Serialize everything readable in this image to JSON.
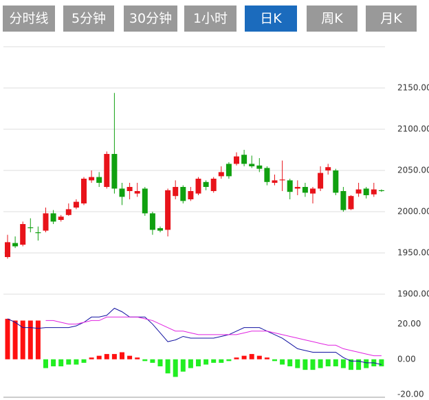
{
  "tabs": {
    "items": [
      "分时线",
      "5分钟",
      "30分钟",
      "1小时",
      "日K",
      "周K",
      "月K"
    ],
    "active": 4
  },
  "chart_data": [
    {
      "type": "candlestick",
      "up_color": "#e8131a",
      "down_color": "#10a010",
      "grid": true,
      "ylim": [
        1900,
        2200
      ],
      "yticks": [
        {
          "value": 1900,
          "label": "1900.00"
        },
        {
          "value": 1950,
          "label": "1950.00"
        },
        {
          "value": 2000,
          "label": "2000.00"
        },
        {
          "value": 2050,
          "label": "2050.00"
        },
        {
          "value": 2100,
          "label": "2100.00"
        },
        {
          "value": 2150,
          "label": "2150.00"
        }
      ],
      "open": [
        1945,
        1962,
        1960,
        1981,
        1975,
        1977,
        1998,
        1990,
        1996,
        2005,
        2010,
        2038,
        2042,
        2030,
        2070,
        2028,
        2025,
        2022,
        2028,
        1998,
        1980,
        1978,
        2019,
        2030,
        2015,
        2022,
        2036,
        2025,
        2043,
        2058,
        2058,
        2069,
        2058,
        2056,
        2053,
        2035,
        2038,
        2038,
        2028,
        2030,
        2022,
        2028,
        2050,
        2050,
        2025,
        2003,
        2022,
        2028,
        2021,
        2026
      ],
      "high": [
        1972,
        1970,
        1988,
        1992,
        1982,
        2005,
        2002,
        1996,
        2010,
        2015,
        2042,
        2050,
        2048,
        2073,
        2144,
        2035,
        2035,
        2035,
        2030,
        2000,
        1982,
        2028,
        2038,
        2032,
        2030,
        2042,
        2038,
        2042,
        2055,
        2060,
        2072,
        2075,
        2068,
        2065,
        2055,
        2045,
        2062,
        2040,
        2038,
        2035,
        2030,
        2055,
        2058,
        2052,
        2030,
        2020,
        2035,
        2030,
        2035,
        2027
      ],
      "low": [
        1943,
        1956,
        1958,
        1975,
        1965,
        1975,
        1985,
        1988,
        1995,
        2003,
        2008,
        2035,
        2030,
        2028,
        2022,
        2008,
        2015,
        2018,
        1995,
        1972,
        1975,
        1970,
        2015,
        2010,
        2013,
        2020,
        2026,
        2023,
        2040,
        2040,
        2056,
        2055,
        2053,
        2048,
        2032,
        2032,
        2025,
        2015,
        2020,
        2018,
        2010,
        2025,
        2045,
        2020,
        2000,
        2002,
        2018,
        2016,
        2018,
        2024
      ],
      "close": [
        1963,
        1958,
        1985,
        1980,
        1974,
        1998,
        1988,
        1994,
        2003,
        2012,
        2040,
        2042,
        2035,
        2070,
        2028,
        2018,
        2030,
        2025,
        1998,
        1978,
        1977,
        2026,
        2030,
        2013,
        2025,
        2040,
        2030,
        2040,
        2048,
        2043,
        2067,
        2058,
        2055,
        2052,
        2036,
        2038,
        2039,
        2024,
        2030,
        2023,
        2028,
        2047,
        2054,
        2023,
        2002,
        2019,
        2027,
        2020,
        2027,
        2025
      ]
    },
    {
      "type": "combo",
      "grid": false,
      "ylim": [
        -20,
        37
      ],
      "yticks": [
        {
          "value": -20,
          "label": "-20.00"
        },
        {
          "value": 0,
          "label": "0.00"
        },
        {
          "value": 20,
          "label": "20.00"
        }
      ],
      "series": [
        {
          "type": "bar",
          "up_color": "#ff1010",
          "down_color": "#22ee22",
          "values": [
            23,
            22,
            22,
            22,
            22,
            -5,
            -4,
            -4,
            -3,
            -3,
            -2,
            1,
            2,
            3,
            3,
            4,
            2,
            1,
            -1,
            -2,
            -4,
            -8,
            -10,
            -7,
            -5,
            -4,
            -3,
            -2,
            -2,
            -1,
            1,
            2,
            3,
            2,
            1,
            -1,
            -3,
            -4,
            -5,
            -6,
            -6,
            -5,
            -4,
            -4,
            -5,
            -6,
            -6,
            -5,
            -4,
            -4
          ]
        },
        {
          "type": "line",
          "color": "#1010a0",
          "values": [
            23,
            21,
            18,
            18,
            17.6,
            18,
            18,
            18,
            18,
            19,
            21,
            24,
            24,
            25,
            29,
            27,
            24,
            24,
            24,
            20,
            15,
            10,
            11,
            13,
            12,
            12,
            12,
            12,
            13,
            14,
            16,
            18,
            18,
            18,
            16,
            14,
            12,
            9,
            6,
            5,
            4,
            4,
            4,
            4,
            1,
            -1,
            -1,
            -2,
            -2,
            -3
          ]
        },
        {
          "type": "line",
          "color": "#e020e0",
          "values": [
            null,
            null,
            null,
            null,
            null,
            22,
            22,
            21,
            20,
            20,
            21,
            22,
            22,
            24,
            24,
            24,
            24,
            24,
            23,
            22,
            20,
            18,
            16,
            16,
            15,
            14,
            14,
            14,
            14,
            14,
            14,
            15,
            16,
            16,
            16,
            15,
            14,
            13,
            12,
            11,
            10,
            9,
            8,
            8,
            6,
            5,
            4,
            3,
            2,
            2
          ]
        }
      ]
    }
  ]
}
